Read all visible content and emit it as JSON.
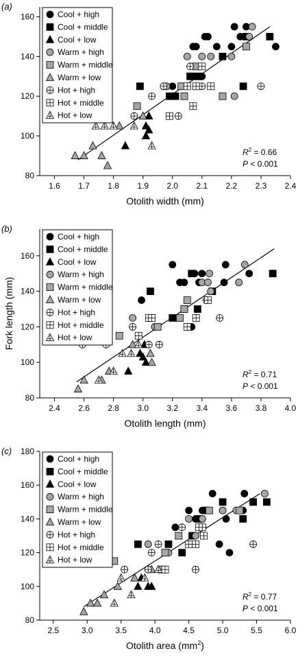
{
  "ylabel_shared": "Fork length (mm)",
  "legend": [
    {
      "name": "Cool + high",
      "marker": "circle",
      "fill": "#000000"
    },
    {
      "name": "Cool + middle",
      "marker": "square",
      "fill": "#000000"
    },
    {
      "name": "Cool + low",
      "marker": "triangle",
      "fill": "#000000"
    },
    {
      "name": "Warm + high",
      "marker": "circle",
      "fill": "#a6a6a6"
    },
    {
      "name": "Warm + middle",
      "marker": "square",
      "fill": "#a6a6a6"
    },
    {
      "name": "Warm + low",
      "marker": "triangle",
      "fill": "#a6a6a6"
    },
    {
      "name": "Hot + high",
      "marker": "circle-plus",
      "fill": "#ffffff"
    },
    {
      "name": "Hot + middle",
      "marker": "square-plus",
      "fill": "#ffffff"
    },
    {
      "name": "Hot + low",
      "marker": "triangle-plus",
      "fill": "#ffffff"
    }
  ],
  "chart_data": [
    {
      "panel": "(a)",
      "type": "scatter",
      "xlabel": "Otolith width (mm)",
      "xlim": [
        1.55,
        2.4
      ],
      "ylim": [
        80,
        165
      ],
      "xticks": [
        "1.6",
        "1.7",
        "1.8",
        "1.9",
        "2.0",
        "2.1",
        "2.2",
        "2.3",
        "2.4"
      ],
      "yticks": [
        "80",
        "100",
        "120",
        "140",
        "160"
      ],
      "r2_label": "R",
      "r2_value": " = 0.66",
      "p_label": "P",
      "p_value": " < 0.001",
      "fit_line": [
        [
          1.68,
          88
        ],
        [
          2.33,
          155
        ]
      ],
      "series": [
        {
          "name": "Cool + high",
          "points": [
            [
              2.0,
              125
            ],
            [
              2.07,
              145
            ],
            [
              2.08,
              145
            ],
            [
              2.1,
              130
            ],
            [
              2.11,
              150
            ],
            [
              2.12,
              150
            ],
            [
              2.15,
              145
            ],
            [
              2.2,
              145
            ],
            [
              2.21,
              155
            ],
            [
              2.23,
              150
            ],
            [
              2.25,
              155
            ],
            [
              2.35,
              145
            ],
            [
              2.03,
              125
            ]
          ]
        },
        {
          "name": "Cool + middle",
          "points": [
            [
              1.89,
              125
            ],
            [
              1.99,
              120
            ],
            [
              2.01,
              120
            ],
            [
              2.07,
              130
            ],
            [
              2.09,
              130
            ],
            [
              2.17,
              140
            ],
            [
              2.24,
              125
            ],
            [
              2.25,
              150
            ],
            [
              2.33,
              150
            ],
            [
              2.06,
              130
            ]
          ]
        },
        {
          "name": "Cool + low",
          "points": [
            [
              1.84,
              95
            ],
            [
              1.91,
              100
            ],
            [
              1.91,
              105
            ],
            [
              1.92,
              103
            ],
            [
              1.92,
              110
            ]
          ]
        },
        {
          "name": "Warm + high",
          "points": [
            [
              1.97,
              125
            ],
            [
              2.05,
              140
            ],
            [
              2.1,
              140
            ],
            [
              2.13,
              140
            ],
            [
              2.2,
              140
            ],
            [
              2.21,
              120
            ],
            [
              2.27,
              155
            ],
            [
              2.26,
              150
            ],
            [
              1.98,
              125
            ]
          ]
        },
        {
          "name": "Warm + middle",
          "points": [
            [
              1.88,
              115
            ],
            [
              2.03,
              125
            ],
            [
              2.04,
              120
            ],
            [
              2.08,
              135
            ],
            [
              2.17,
              120
            ],
            [
              2.25,
              145
            ]
          ]
        },
        {
          "name": "Warm + low",
          "points": [
            [
              1.67,
              90
            ],
            [
              1.7,
              90
            ],
            [
              1.73,
              95
            ],
            [
              1.76,
              90
            ],
            [
              1.78,
              85
            ],
            [
              1.82,
              105
            ],
            [
              1.9,
              110
            ]
          ]
        },
        {
          "name": "Hot + high",
          "points": [
            [
              1.87,
              110
            ],
            [
              1.93,
              120
            ],
            [
              1.97,
              125
            ],
            [
              2.06,
              135
            ],
            [
              2.1,
              125
            ],
            [
              2.3,
              125
            ],
            [
              2.02,
              110
            ]
          ]
        },
        {
          "name": "Hot + middle",
          "points": [
            [
              1.99,
              110
            ],
            [
              2.05,
              125
            ],
            [
              2.08,
              125
            ],
            [
              2.1,
              135
            ],
            [
              2.07,
              115
            ],
            [
              2.13,
              125
            ]
          ]
        },
        {
          "name": "Hot + low",
          "points": [
            [
              1.74,
              105
            ],
            [
              1.77,
              105
            ],
            [
              1.8,
              105
            ],
            [
              1.93,
              95
            ],
            [
              1.87,
              105
            ]
          ]
        }
      ]
    },
    {
      "panel": "(b)",
      "type": "scatter",
      "xlabel": "Otolith length (mm)",
      "xlim": [
        2.3,
        4.0
      ],
      "ylim": [
        80,
        175
      ],
      "xticks": [
        "2.4",
        "2.6",
        "2.8",
        "3.0",
        "3.2",
        "3.4",
        "3.6",
        "3.8",
        "4.0"
      ],
      "yticks": [
        "80",
        "100",
        "120",
        "140",
        "160"
      ],
      "r2_label": "R",
      "r2_value": " = 0.71",
      "p_label": "P",
      "p_value": " < 0.001",
      "fit_line": [
        [
          2.55,
          89
        ],
        [
          3.89,
          164
        ]
      ],
      "series": [
        {
          "name": "Cool + high",
          "points": [
            [
              2.99,
              135
            ],
            [
              3.2,
              155
            ],
            [
              3.25,
              145
            ],
            [
              3.28,
              145
            ],
            [
              3.3,
              120
            ],
            [
              3.33,
              120
            ],
            [
              3.35,
              150
            ],
            [
              3.38,
              145
            ],
            [
              3.4,
              150
            ],
            [
              3.56,
              155
            ],
            [
              3.55,
              145
            ],
            [
              3.72,
              150
            ]
          ]
        },
        {
          "name": "Cool + middle",
          "points": [
            [
              3.05,
              140
            ],
            [
              3.2,
              125
            ],
            [
              3.28,
              130
            ],
            [
              3.33,
              150
            ],
            [
              3.37,
              130
            ],
            [
              3.47,
              140
            ],
            [
              3.88,
              150
            ]
          ]
        },
        {
          "name": "Cool + low",
          "points": [
            [
              2.9,
              95
            ],
            [
              2.98,
              105
            ],
            [
              3.0,
              103
            ],
            [
              3.02,
              100
            ],
            [
              3.01,
              110
            ]
          ]
        },
        {
          "name": "Warm + high",
          "points": [
            [
              2.93,
              125
            ],
            [
              3.08,
              120
            ],
            [
              3.4,
              145
            ],
            [
              3.44,
              145
            ],
            [
              3.46,
              140
            ],
            [
              3.65,
              145
            ],
            [
              3.69,
              155
            ],
            [
              3.45,
              150
            ]
          ]
        },
        {
          "name": "Warm + middle",
          "points": [
            [
              2.84,
              115
            ],
            [
              3.1,
              120
            ],
            [
              3.25,
              125
            ],
            [
              3.3,
              135
            ],
            [
              3.28,
              130
            ]
          ]
        },
        {
          "name": "Warm + low",
          "points": [
            [
              2.56,
              85
            ],
            [
              2.6,
              90
            ],
            [
              2.72,
              90
            ],
            [
              2.77,
              95
            ],
            [
              2.93,
              110
            ],
            [
              3.06,
              100
            ],
            [
              3.05,
              105
            ]
          ]
        },
        {
          "name": "Hot + high",
          "points": [
            [
              2.59,
              110
            ],
            [
              2.75,
              110
            ],
            [
              2.93,
              120
            ],
            [
              3.04,
              110
            ],
            [
              3.11,
              110
            ],
            [
              3.43,
              135
            ],
            [
              3.52,
              125
            ]
          ]
        },
        {
          "name": "Hot + middle",
          "points": [
            [
              2.97,
              115
            ],
            [
              3.04,
              125
            ],
            [
              3.06,
              125
            ],
            [
              3.3,
              120
            ],
            [
              3.36,
              125
            ],
            [
              3.44,
              135
            ]
          ]
        },
        {
          "name": "Hot + low",
          "points": [
            [
              2.7,
              90
            ],
            [
              2.8,
              95
            ],
            [
              2.86,
              105
            ],
            [
              2.92,
              105
            ],
            [
              2.97,
              110
            ]
          ]
        }
      ]
    },
    {
      "panel": "(c)",
      "type": "scatter",
      "xlabel": "Otolith area (mm",
      "xlabel_sup": "2",
      "xlabel_tail": ")",
      "xlim": [
        2.3,
        6.0
      ],
      "ylim": [
        80,
        180
      ],
      "xticks": [
        "2.5",
        "3.0",
        "3.5",
        "4.0",
        "4.5",
        "5.0",
        "5.5",
        "6.0"
      ],
      "yticks": [
        "80",
        "100",
        "120",
        "140",
        "160",
        "180"
      ],
      "r2_label": "R",
      "r2_value": " = 0.77",
      "p_label": "P",
      "p_value": " < 0.001",
      "fit_line": [
        [
          2.95,
          88
        ],
        [
          5.55,
          155
        ]
      ],
      "series": [
        {
          "name": "Cool + high",
          "points": [
            [
              4.3,
              135
            ],
            [
              4.5,
              145
            ],
            [
              4.7,
              145
            ],
            [
              4.85,
              155
            ],
            [
              4.95,
              125
            ],
            [
              5.0,
              145
            ],
            [
              5.05,
              140
            ],
            [
              5.1,
              120
            ],
            [
              5.3,
              145
            ],
            [
              5.32,
              155
            ],
            [
              4.6,
              140
            ]
          ]
        },
        {
          "name": "Cool + middle",
          "points": [
            [
              3.75,
              125
            ],
            [
              4.2,
              125
            ],
            [
              4.4,
              120
            ],
            [
              4.55,
              130
            ],
            [
              4.65,
              140
            ],
            [
              5.0,
              150
            ],
            [
              5.3,
              140
            ],
            [
              5.45,
              150
            ],
            [
              5.65,
              150
            ],
            [
              4.75,
              145
            ]
          ]
        },
        {
          "name": "Cool + low",
          "points": [
            [
              3.7,
              105
            ],
            [
              3.75,
              100
            ],
            [
              3.9,
              100
            ],
            [
              3.95,
              100
            ],
            [
              3.8,
              105
            ]
          ]
        },
        {
          "name": "Warm + high",
          "points": [
            [
              3.9,
              125
            ],
            [
              4.2,
              120
            ],
            [
              4.5,
              140
            ],
            [
              4.7,
              140
            ],
            [
              5.0,
              145
            ],
            [
              5.2,
              145
            ],
            [
              5.62,
              155
            ],
            [
              4.6,
              130
            ]
          ]
        },
        {
          "name": "Warm + middle",
          "points": [
            [
              3.4,
              115
            ],
            [
              4.1,
              110
            ],
            [
              4.15,
              120
            ],
            [
              4.35,
              130
            ],
            [
              4.8,
              145
            ],
            [
              5.25,
              145
            ]
          ]
        },
        {
          "name": "Warm + low",
          "points": [
            [
              2.95,
              85
            ],
            [
              3.05,
              90
            ],
            [
              3.15,
              90
            ],
            [
              3.25,
              95
            ],
            [
              3.45,
              100
            ],
            [
              3.7,
              105
            ],
            [
              3.95,
              110
            ]
          ]
        },
        {
          "name": "Hot + high",
          "points": [
            [
              3.55,
              110
            ],
            [
              3.9,
              110
            ],
            [
              3.95,
              120
            ],
            [
              4.05,
              125
            ],
            [
              4.4,
              135
            ],
            [
              4.6,
              110
            ],
            [
              5.45,
              125
            ]
          ]
        },
        {
          "name": "Hot + middle",
          "points": [
            [
              4.15,
              110
            ],
            [
              4.5,
              125
            ],
            [
              4.6,
              125
            ],
            [
              4.65,
              135
            ],
            [
              4.7,
              135
            ],
            [
              4.72,
              130
            ]
          ]
        },
        {
          "name": "Hot + low",
          "points": [
            [
              3.4,
              90
            ],
            [
              3.5,
              105
            ],
            [
              3.65,
              95
            ],
            [
              3.85,
              105
            ],
            [
              4.05,
              110
            ]
          ]
        }
      ]
    }
  ]
}
